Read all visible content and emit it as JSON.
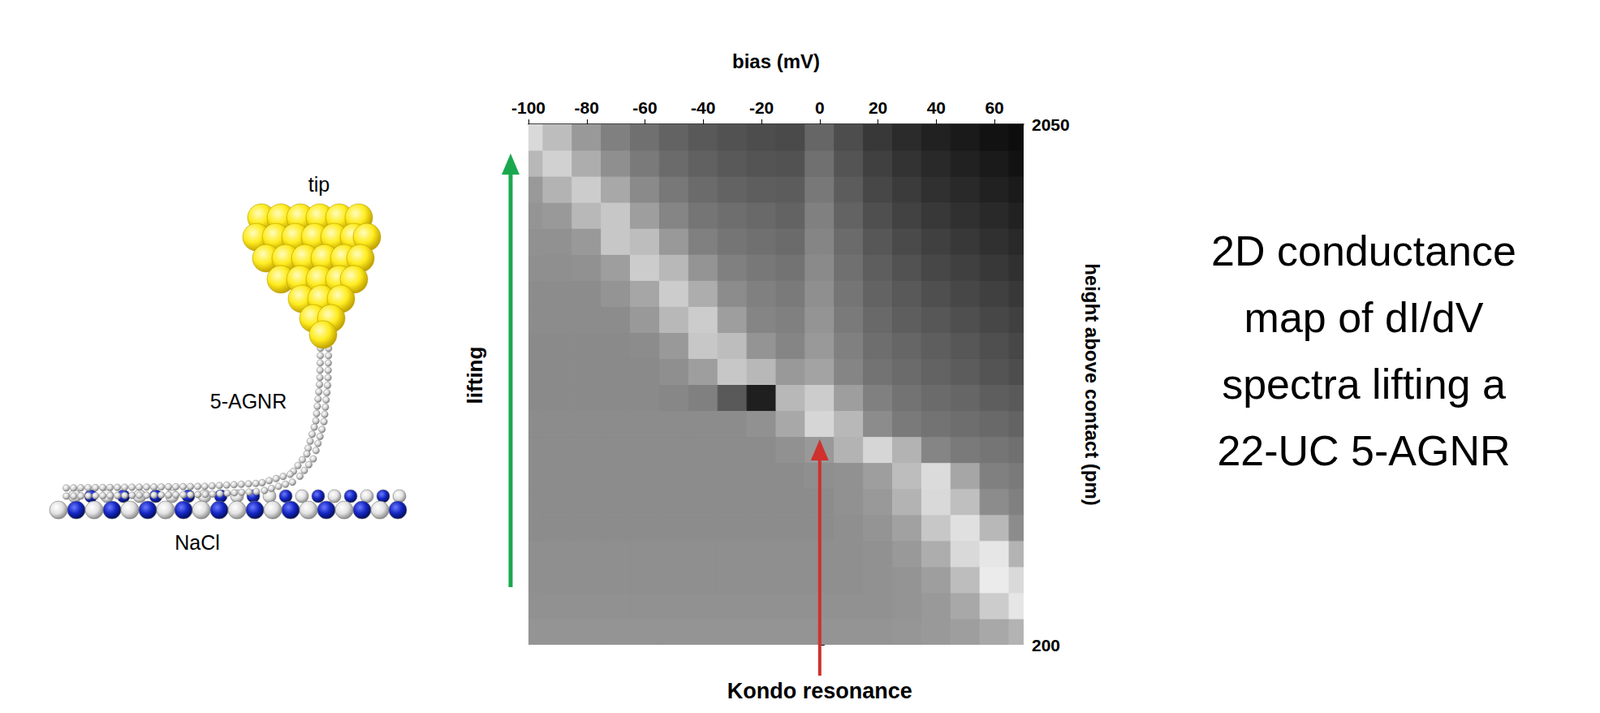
{
  "chart_data": {
    "type": "heatmap",
    "x_label": "bias (mV)",
    "y_label": "height above contact (pm)",
    "xlim": [
      -100,
      70
    ],
    "xticks": [
      -100,
      -80,
      -60,
      -40,
      -20,
      0,
      20,
      40,
      60
    ],
    "ylim": [
      200,
      2050
    ],
    "yticks": [
      200,
      2050
    ],
    "x": [
      -100,
      -90,
      -80,
      -70,
      -60,
      -50,
      -40,
      -30,
      -20,
      -10,
      0,
      10,
      20,
      30,
      40,
      50,
      60,
      70
    ],
    "y": [
      246,
      339,
      431,
      524,
      616,
      709,
      801,
      894,
      986,
      1079,
      1171,
      1264,
      1356,
      1449,
      1541,
      1634,
      1726,
      1819,
      1911,
      2004
    ],
    "cells": [
      [
        0.58,
        0.58,
        0.58,
        0.58,
        0.58,
        0.58,
        0.58,
        0.58,
        0.58,
        0.58,
        0.58,
        0.58,
        0.58,
        0.59,
        0.6,
        0.62,
        0.66,
        0.7
      ],
      [
        0.57,
        0.57,
        0.57,
        0.57,
        0.57,
        0.57,
        0.57,
        0.57,
        0.57,
        0.57,
        0.57,
        0.57,
        0.57,
        0.58,
        0.6,
        0.66,
        0.8,
        0.9
      ],
      [
        0.56,
        0.56,
        0.56,
        0.56,
        0.56,
        0.56,
        0.56,
        0.56,
        0.56,
        0.56,
        0.56,
        0.56,
        0.57,
        0.58,
        0.62,
        0.74,
        0.92,
        0.85
      ],
      [
        0.56,
        0.56,
        0.56,
        0.56,
        0.56,
        0.56,
        0.56,
        0.56,
        0.56,
        0.56,
        0.56,
        0.56,
        0.57,
        0.6,
        0.68,
        0.85,
        0.9,
        0.7
      ],
      [
        0.55,
        0.55,
        0.55,
        0.55,
        0.55,
        0.55,
        0.55,
        0.55,
        0.55,
        0.55,
        0.55,
        0.56,
        0.58,
        0.63,
        0.78,
        0.88,
        0.72,
        0.55
      ],
      [
        0.55,
        0.55,
        0.55,
        0.55,
        0.55,
        0.55,
        0.55,
        0.55,
        0.55,
        0.55,
        0.55,
        0.57,
        0.6,
        0.7,
        0.85,
        0.75,
        0.55,
        0.5
      ],
      [
        0.55,
        0.55,
        0.55,
        0.55,
        0.55,
        0.55,
        0.55,
        0.55,
        0.55,
        0.55,
        0.56,
        0.57,
        0.62,
        0.74,
        0.86,
        0.65,
        0.5,
        0.48
      ],
      [
        0.55,
        0.55,
        0.55,
        0.55,
        0.55,
        0.55,
        0.55,
        0.55,
        0.55,
        0.57,
        0.6,
        0.7,
        0.84,
        0.7,
        0.52,
        0.48,
        0.46,
        0.44
      ],
      [
        0.55,
        0.55,
        0.55,
        0.55,
        0.55,
        0.55,
        0.55,
        0.55,
        0.57,
        0.66,
        0.84,
        0.72,
        0.55,
        0.48,
        0.45,
        0.43,
        0.41,
        0.39
      ],
      [
        0.54,
        0.54,
        0.54,
        0.54,
        0.54,
        0.53,
        0.5,
        0.35,
        0.12,
        0.72,
        0.8,
        0.62,
        0.5,
        0.45,
        0.42,
        0.4,
        0.37,
        0.35
      ],
      [
        0.54,
        0.54,
        0.54,
        0.54,
        0.54,
        0.56,
        0.62,
        0.78,
        0.72,
        0.6,
        0.64,
        0.52,
        0.45,
        0.42,
        0.39,
        0.36,
        0.33,
        0.3
      ],
      [
        0.54,
        0.54,
        0.54,
        0.54,
        0.55,
        0.6,
        0.78,
        0.74,
        0.58,
        0.52,
        0.6,
        0.5,
        0.43,
        0.4,
        0.37,
        0.34,
        0.31,
        0.28
      ],
      [
        0.55,
        0.55,
        0.55,
        0.55,
        0.6,
        0.72,
        0.8,
        0.62,
        0.52,
        0.5,
        0.58,
        0.48,
        0.41,
        0.37,
        0.34,
        0.31,
        0.28,
        0.25
      ],
      [
        0.55,
        0.55,
        0.55,
        0.58,
        0.65,
        0.8,
        0.68,
        0.55,
        0.5,
        0.48,
        0.56,
        0.46,
        0.39,
        0.35,
        0.31,
        0.28,
        0.25,
        0.22
      ],
      [
        0.56,
        0.56,
        0.57,
        0.62,
        0.8,
        0.72,
        0.58,
        0.5,
        0.47,
        0.45,
        0.54,
        0.44,
        0.37,
        0.32,
        0.28,
        0.25,
        0.22,
        0.19
      ],
      [
        0.57,
        0.57,
        0.6,
        0.78,
        0.74,
        0.6,
        0.5,
        0.46,
        0.44,
        0.42,
        0.52,
        0.42,
        0.34,
        0.29,
        0.25,
        0.22,
        0.19,
        0.16
      ],
      [
        0.58,
        0.6,
        0.72,
        0.78,
        0.62,
        0.52,
        0.46,
        0.43,
        0.41,
        0.39,
        0.5,
        0.39,
        0.31,
        0.26,
        0.22,
        0.19,
        0.16,
        0.13
      ],
      [
        0.6,
        0.7,
        0.8,
        0.66,
        0.54,
        0.47,
        0.42,
        0.39,
        0.37,
        0.36,
        0.47,
        0.36,
        0.28,
        0.23,
        0.19,
        0.16,
        0.13,
        0.1
      ],
      [
        0.72,
        0.82,
        0.68,
        0.56,
        0.48,
        0.42,
        0.38,
        0.35,
        0.33,
        0.32,
        0.44,
        0.33,
        0.25,
        0.2,
        0.16,
        0.13,
        0.1,
        0.07
      ],
      [
        0.85,
        0.74,
        0.6,
        0.5,
        0.44,
        0.39,
        0.35,
        0.32,
        0.3,
        0.29,
        0.4,
        0.3,
        0.22,
        0.17,
        0.13,
        0.1,
        0.07,
        0.05
      ]
    ],
    "annotations": [
      {
        "text": "lifting"
      },
      {
        "text": "Kondo resonance",
        "x": 0,
        "y": 930
      }
    ]
  },
  "illustration": {
    "tip": "tip",
    "ribbon": "5-AGNR",
    "substrate": "NaCl"
  },
  "caption": "2D conductance map of dI/dV spectra lifting a 22-UC 5-AGNR"
}
